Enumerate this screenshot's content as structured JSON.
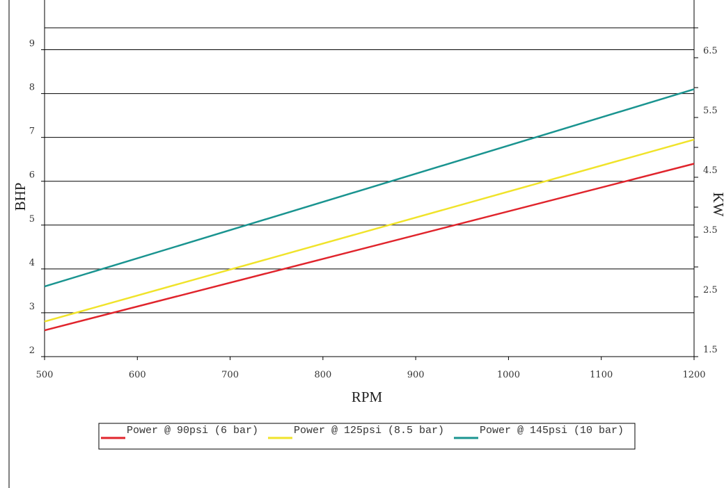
{
  "chart_data": {
    "type": "line",
    "xlabel": "RPM",
    "ylabel": "BHP",
    "y2label": "KW",
    "xlim": [
      500,
      1200
    ],
    "ylim": [
      2,
      9.5
    ],
    "y2lim": [
      1.5,
      7.0
    ],
    "x_ticks": [
      "500",
      "600",
      "700",
      "800",
      "900",
      "1000",
      "1100",
      "1200"
    ],
    "y_ticks": [
      "2",
      "3",
      "4",
      "5",
      "6",
      "7",
      "8",
      "9"
    ],
    "y2_ticks": [
      "1.5",
      "2.5",
      "3.5",
      "4.5",
      "5.5",
      "6.5"
    ],
    "x_tick_values": [
      500,
      600,
      700,
      800,
      900,
      1000,
      1100,
      1200
    ],
    "y_tick_values": [
      2,
      3,
      4,
      5,
      6,
      7,
      8,
      9
    ],
    "y2_tick_values": [
      1.5,
      2.5,
      3.5,
      4.5,
      5.5,
      6.5
    ],
    "grid": true,
    "legend_position": "bottom",
    "series": [
      {
        "name": "Power @ 90psi (6 bar)",
        "color": "#e0242c",
        "x": [
          500,
          1200
        ],
        "y": [
          2.6,
          6.4
        ]
      },
      {
        "name": "Power @ 125psi (8.5 bar)",
        "color": "#f0e32a",
        "x": [
          500,
          1200
        ],
        "y": [
          2.8,
          6.95
        ]
      },
      {
        "name": "Power @ 145psi (10 bar)",
        "color": "#1a9490",
        "x": [
          500,
          1200
        ],
        "y": [
          3.6,
          8.1
        ]
      }
    ]
  }
}
